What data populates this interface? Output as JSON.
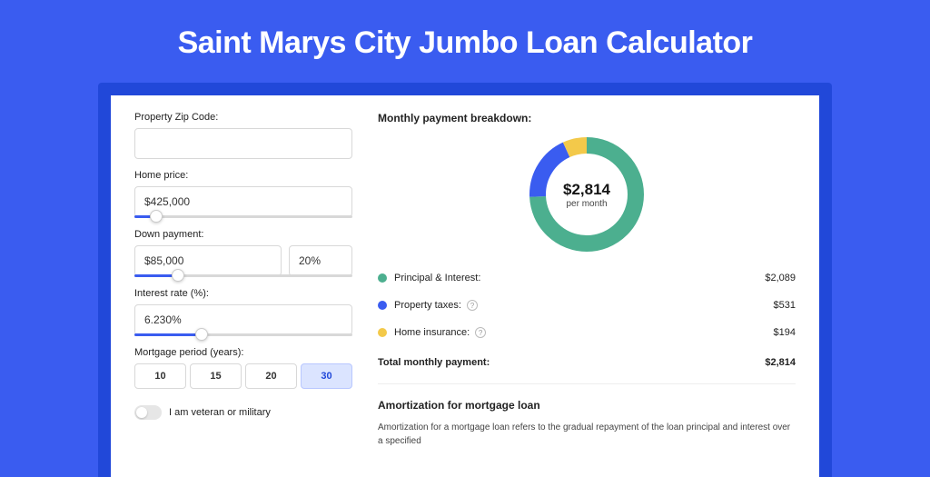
{
  "title": "Saint Marys City Jumbo Loan Calculator",
  "form": {
    "zip_label": "Property Zip Code:",
    "zip_value": "",
    "price_label": "Home price:",
    "price_value": "$425,000",
    "price_slider_pct": 10,
    "down_label": "Down payment:",
    "down_value": "$85,000",
    "down_pct_value": "20%",
    "down_slider_pct": 20,
    "rate_label": "Interest rate (%):",
    "rate_value": "6.230%",
    "rate_slider_pct": 31,
    "period_label": "Mortgage period (years):",
    "periods": [
      "10",
      "15",
      "20",
      "30"
    ],
    "period_selected": 3,
    "veteran_label": "I am veteran or military"
  },
  "breakdown": {
    "title": "Monthly payment breakdown:",
    "donut": {
      "type": "donut",
      "value": "$2,814",
      "sub": "per month",
      "ring_width": 18,
      "radius": 54,
      "background": "#ffffff",
      "segments": [
        {
          "key": "pi",
          "pct": 74.2,
          "color": "#4caf8f"
        },
        {
          "key": "tax",
          "pct": 18.9,
          "color": "#3a5cf0"
        },
        {
          "key": "ins",
          "pct": 6.9,
          "color": "#f3c94a"
        }
      ]
    },
    "rows": [
      {
        "dot": "#4caf8f",
        "label": "Principal & Interest:",
        "value": "$2,089",
        "help": false
      },
      {
        "dot": "#3a5cf0",
        "label": "Property taxes:",
        "value": "$531",
        "help": true
      },
      {
        "dot": "#f3c94a",
        "label": "Home insurance:",
        "value": "$194",
        "help": true
      }
    ],
    "total_label": "Total monthly payment:",
    "total_value": "$2,814"
  },
  "amort": {
    "title": "Amortization for mortgage loan",
    "text": "Amortization for a mortgage loan refers to the gradual repayment of the loan principal and interest over a specified"
  },
  "colors": {
    "page_bg": "#3a5cf0",
    "card_bg": "#ffffff",
    "wrap_bg": "#2148d9"
  }
}
